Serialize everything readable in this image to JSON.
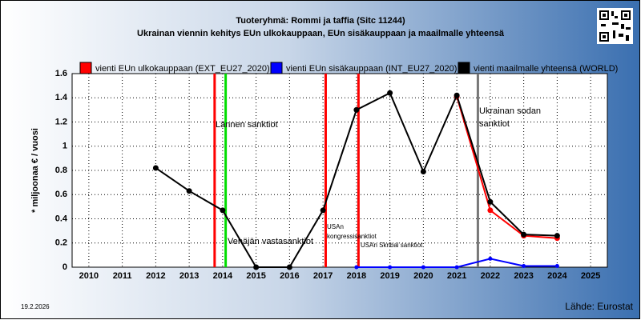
{
  "chart_data": {
    "type": "line",
    "title": "Tuoteryhmä: Rommi ja taffia (Sitc 11244)",
    "subtitle": "Ukrainan viennin kehitys EUn ulkokauppaan, EUn sisäkauppaan ja maailmalle yhteensä",
    "y_label": "* miljoonaa € / vuosi",
    "x": [
      2010,
      2011,
      2012,
      2013,
      2014,
      2015,
      2016,
      2017,
      2018,
      2019,
      2020,
      2021,
      2022,
      2023,
      2024,
      2025
    ],
    "xlim": [
      2009.5,
      2025.5
    ],
    "xticks": [
      2010,
      2011,
      2012,
      2013,
      2014,
      2015,
      2016,
      2017,
      2018,
      2019,
      2020,
      2021,
      2022,
      2023,
      2024,
      2025
    ],
    "ylim": [
      0,
      1.6
    ],
    "yticks": [
      0,
      0.2,
      0.4,
      0.6,
      0.8,
      1,
      1.2,
      1.4,
      1.6
    ],
    "grid": true,
    "series": [
      {
        "name": "vienti EUn ulkokauppaan (EXT_EU27_2020)",
        "color": "#ff0000",
        "values": [
          null,
          null,
          null,
          null,
          null,
          null,
          null,
          null,
          null,
          null,
          null,
          1.41,
          0.47,
          0.26,
          0.24,
          null
        ]
      },
      {
        "name": "vienti EUn sisäkauppaan (INT_EU27_2020)",
        "color": "#0000ff",
        "values": [
          null,
          null,
          null,
          null,
          null,
          null,
          null,
          null,
          0,
          0,
          0,
          0,
          0.07,
          0.01,
          0.01,
          null
        ]
      },
      {
        "name": "vienti maailmalle yhteensä (WORLD)",
        "color": "#000000",
        "values": [
          null,
          null,
          0.82,
          0.63,
          0.47,
          0,
          0,
          0.47,
          1.3,
          1.44,
          0.79,
          1.42,
          0.54,
          0.27,
          0.26,
          null
        ]
      }
    ],
    "events": [
      {
        "x": 2013.76,
        "color": "#ff0000",
        "label": [
          "Lännen sanktiot"
        ]
      },
      {
        "x": 2014.09,
        "color": "#00dd00",
        "label": [
          "Venäjän vastasanktiot"
        ]
      },
      {
        "x": 2017.08,
        "color": "#ff0000",
        "label": [
          "USAn",
          "kongressisanktiot"
        ]
      },
      {
        "x": 2018.06,
        "color": "#ff0000",
        "label": [
          "USAn Skribal sanktiot"
        ]
      },
      {
        "x": 2021.63,
        "color": "#777777",
        "label": [
          "Ukrainan sodan",
          "sanktiot"
        ]
      }
    ],
    "date": "19.2.2026",
    "source": "Lähde: Eurostat"
  }
}
